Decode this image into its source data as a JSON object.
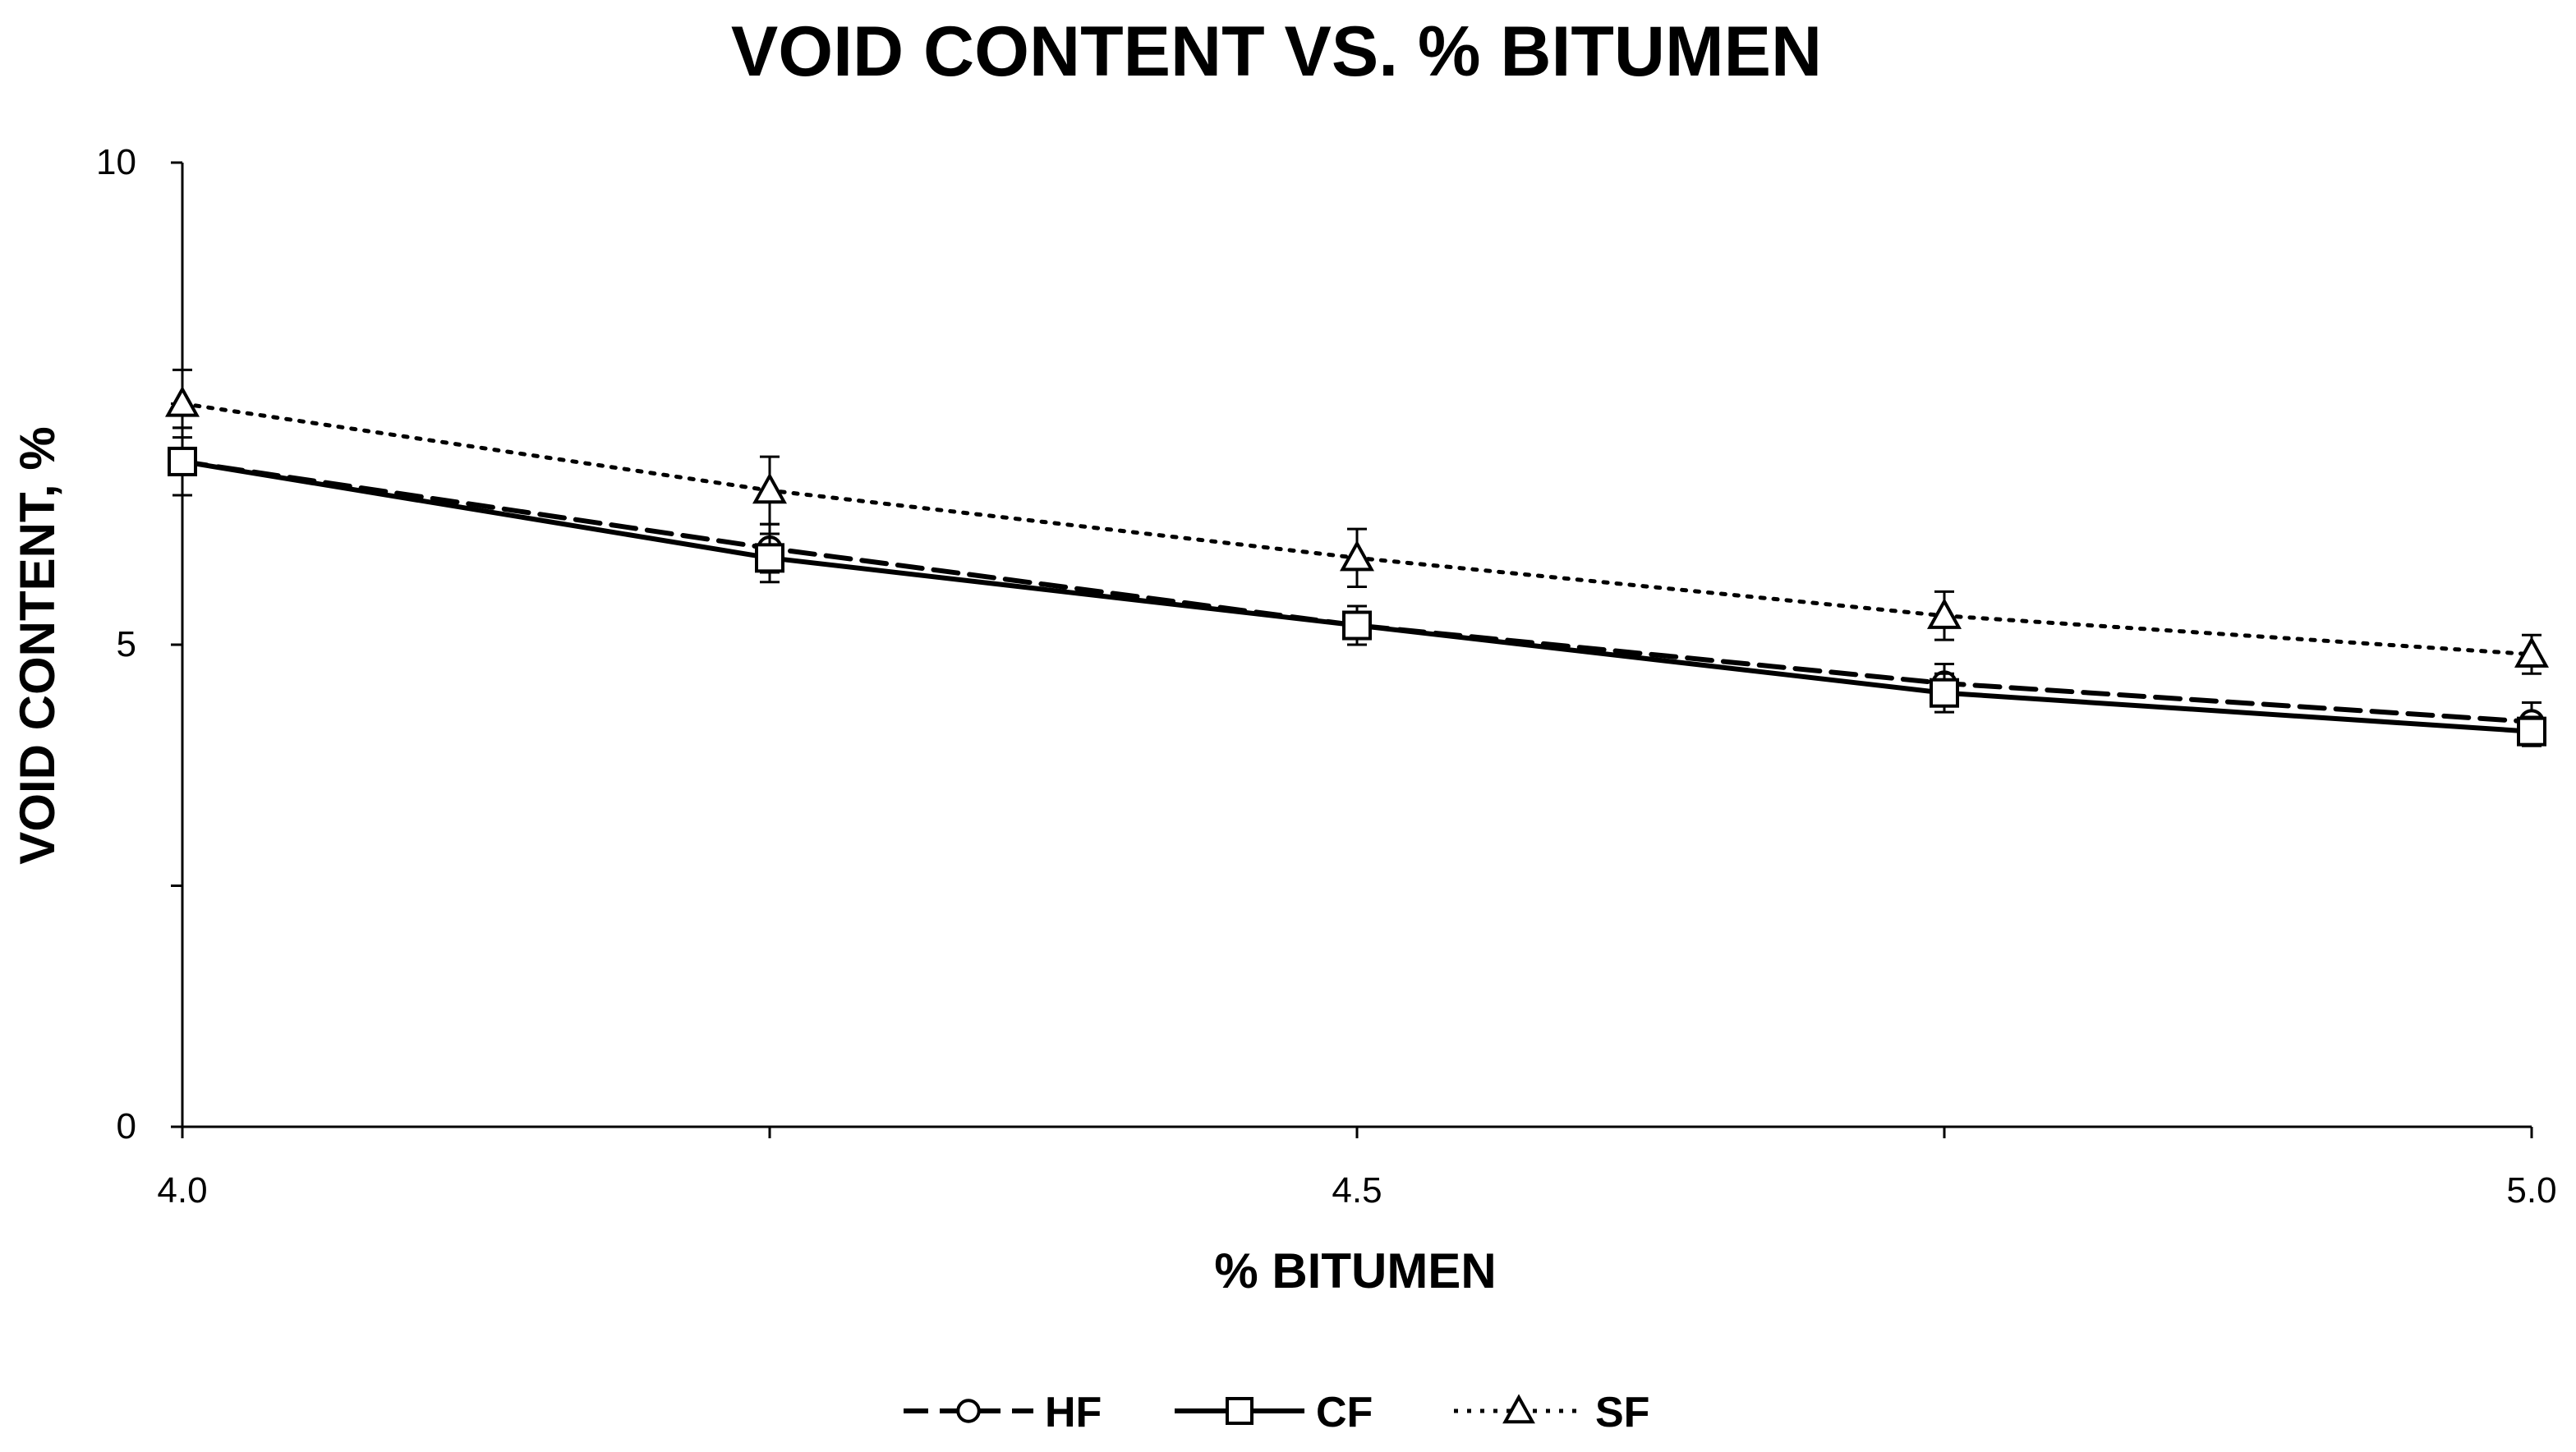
{
  "chart_data": {
    "type": "line",
    "title": "VOID CONTENT VS. % BITUMEN",
    "xlabel": "% BITUMEN",
    "ylabel": "VOID CONTENT, %",
    "xlim": [
      4.0,
      5.0
    ],
    "ylim": [
      0,
      10
    ],
    "x_ticks": [
      4.0,
      4.25,
      4.5,
      4.75,
      5.0
    ],
    "x_tick_labels": [
      "4.0",
      "",
      "4.5",
      "",
      "5.0"
    ],
    "y_ticks": [
      0,
      2.5,
      5,
      7.5,
      10
    ],
    "y_tick_labels": [
      "0",
      "",
      "5",
      "",
      "10"
    ],
    "grid": false,
    "legend_position": "bottom",
    "x": [
      4.0,
      4.25,
      4.5,
      4.75,
      5.0
    ],
    "series": [
      {
        "name": "HF",
        "marker": "circle",
        "line_style": "dashed",
        "values": [
          6.9,
          6.0,
          5.2,
          4.6,
          4.2
        ],
        "error": [
          0.35,
          0.25,
          0.2,
          0.2,
          0.2
        ]
      },
      {
        "name": "CF",
        "marker": "square",
        "line_style": "solid",
        "values": [
          6.9,
          5.9,
          5.2,
          4.5,
          4.1
        ],
        "error": [
          0.35,
          0.25,
          0.2,
          0.2,
          0.15
        ]
      },
      {
        "name": "SF",
        "marker": "triangle",
        "line_style": "dotted",
        "values": [
          7.5,
          6.6,
          5.9,
          5.3,
          4.9
        ],
        "error": [
          0.35,
          0.35,
          0.3,
          0.25,
          0.2
        ]
      }
    ]
  }
}
